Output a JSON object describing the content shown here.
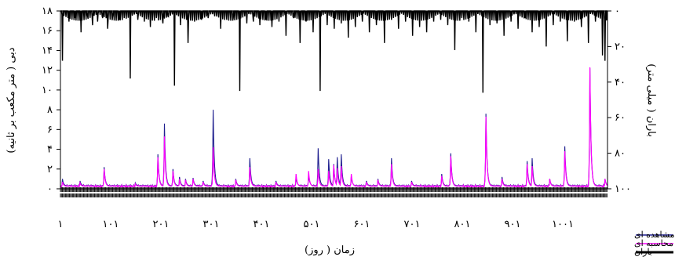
{
  "chart_data": {
    "type": "line",
    "xlabel": "زمان ( روز)",
    "ylabel_left": "دبی ( متر مکعب بر ثانیه)",
    "ylabel_right": "باران ( میلی متر)",
    "xlim": [
      1,
      1090
    ],
    "ylim_left": [
      0,
      18
    ],
    "ylim_right_reversed": [
      0,
      100
    ],
    "x_ticks": [
      1,
      101,
      201,
      301,
      401,
      501,
      601,
      701,
      801,
      901,
      1001
    ],
    "x_tick_labels": [
      "۱",
      "۱۰۱",
      "۲۰۱",
      "۳۰۱",
      "۴۰۱",
      "۵۰۱",
      "۶۰۱",
      "۷۰۱",
      "۸۰۱",
      "۹۰۱",
      "۱۰۰۱"
    ],
    "y_left_ticks": [
      0,
      2,
      4,
      6,
      8,
      10,
      12,
      14,
      16,
      18
    ],
    "y_left_tick_labels": [
      "۰",
      "۲",
      "۴",
      "۶",
      "۸",
      "۱۰",
      "۱۲",
      "۱۴",
      "۱۶",
      "۱۸"
    ],
    "y_right_ticks": [
      0,
      20,
      40,
      60,
      80,
      100
    ],
    "y_right_tick_labels": [
      "۰",
      "۲۰",
      "۴۰",
      "۶۰",
      "۸۰",
      "۱۰۰"
    ],
    "legend_position": "bottom-right",
    "series": [
      {
        "name": "دبی مشاهده ای",
        "color": "#1f1f8f",
        "axis": "left",
        "baseline": 0.3,
        "peaks": [
          [
            5,
            1.0
          ],
          [
            40,
            0.8
          ],
          [
            88,
            2.2
          ],
          [
            150,
            0.6
          ],
          [
            195,
            3.5
          ],
          [
            208,
            6.6
          ],
          [
            225,
            2.0
          ],
          [
            238,
            1.2
          ],
          [
            250,
            1.0
          ],
          [
            265,
            1.1
          ],
          [
            285,
            0.8
          ],
          [
            305,
            8.0
          ],
          [
            350,
            1.0
          ],
          [
            378,
            3.1
          ],
          [
            430,
            0.8
          ],
          [
            470,
            1.2
          ],
          [
            495,
            1.5
          ],
          [
            514,
            4.1
          ],
          [
            535,
            3.0
          ],
          [
            545,
            2.5
          ],
          [
            552,
            3.2
          ],
          [
            560,
            3.5
          ],
          [
            580,
            1.3
          ],
          [
            610,
            0.8
          ],
          [
            633,
            1.0
          ],
          [
            660,
            3.1
          ],
          [
            700,
            0.8
          ],
          [
            760,
            1.5
          ],
          [
            778,
            3.6
          ],
          [
            848,
            7.6
          ],
          [
            880,
            1.2
          ],
          [
            930,
            2.8
          ],
          [
            940,
            3.1
          ],
          [
            975,
            1.0
          ],
          [
            1005,
            4.3
          ],
          [
            1055,
            12.2
          ],
          [
            1085,
            1.0
          ]
        ]
      },
      {
        "name": "دبی محاسبه ای",
        "color": "#ff00ff",
        "axis": "left",
        "baseline": 0.25,
        "peaks": [
          [
            5,
            0.7
          ],
          [
            40,
            0.6
          ],
          [
            88,
            2.0
          ],
          [
            150,
            0.5
          ],
          [
            195,
            3.2
          ],
          [
            208,
            5.3
          ],
          [
            225,
            1.8
          ],
          [
            238,
            1.0
          ],
          [
            250,
            0.9
          ],
          [
            265,
            1.0
          ],
          [
            285,
            0.7
          ],
          [
            305,
            4.2
          ],
          [
            350,
            0.9
          ],
          [
            378,
            2.2
          ],
          [
            430,
            0.7
          ],
          [
            470,
            1.5
          ],
          [
            495,
            1.8
          ],
          [
            514,
            2.0
          ],
          [
            535,
            1.8
          ],
          [
            545,
            2.4
          ],
          [
            552,
            2.1
          ],
          [
            560,
            2.3
          ],
          [
            580,
            1.5
          ],
          [
            610,
            0.7
          ],
          [
            633,
            0.9
          ],
          [
            660,
            2.5
          ],
          [
            700,
            0.7
          ],
          [
            760,
            1.3
          ],
          [
            778,
            3.3
          ],
          [
            848,
            7.3
          ],
          [
            880,
            1.0
          ],
          [
            930,
            2.5
          ],
          [
            940,
            2.3
          ],
          [
            975,
            1.0
          ],
          [
            1005,
            3.8
          ],
          [
            1055,
            12.3
          ],
          [
            1085,
            1.0
          ]
        ]
      },
      {
        "name": "باران",
        "color": "#000000",
        "axis": "right",
        "events": [
          [
            5,
            28
          ],
          [
            18,
            6
          ],
          [
            30,
            4
          ],
          [
            42,
            12
          ],
          [
            55,
            3
          ],
          [
            65,
            8
          ],
          [
            75,
            6
          ],
          [
            85,
            4
          ],
          [
            95,
            10
          ],
          [
            105,
            3
          ],
          [
            118,
            5
          ],
          [
            128,
            4
          ],
          [
            140,
            38
          ],
          [
            155,
            5
          ],
          [
            168,
            6
          ],
          [
            180,
            9
          ],
          [
            192,
            4
          ],
          [
            205,
            7
          ],
          [
            215,
            3
          ],
          [
            228,
            42
          ],
          [
            240,
            8
          ],
          [
            255,
            18
          ],
          [
            268,
            6
          ],
          [
            282,
            5
          ],
          [
            295,
            4
          ],
          [
            308,
            3
          ],
          [
            320,
            10
          ],
          [
            332,
            5
          ],
          [
            345,
            4
          ],
          [
            358,
            45
          ],
          [
            372,
            7
          ],
          [
            385,
            6
          ],
          [
            398,
            8
          ],
          [
            410,
            5
          ],
          [
            422,
            9
          ],
          [
            436,
            6
          ],
          [
            450,
            14
          ],
          [
            465,
            4
          ],
          [
            478,
            18
          ],
          [
            490,
            6
          ],
          [
            504,
            12
          ],
          [
            518,
            45
          ],
          [
            532,
            8
          ],
          [
            546,
            10
          ],
          [
            560,
            7
          ],
          [
            574,
            15
          ],
          [
            588,
            9
          ],
          [
            602,
            6
          ],
          [
            616,
            12
          ],
          [
            630,
            8
          ],
          [
            646,
            18
          ],
          [
            660,
            5
          ],
          [
            674,
            10
          ],
          [
            688,
            6
          ],
          [
            702,
            14
          ],
          [
            716,
            9
          ],
          [
            730,
            12
          ],
          [
            744,
            6
          ],
          [
            758,
            5
          ],
          [
            772,
            8
          ],
          [
            786,
            22
          ],
          [
            800,
            4
          ],
          [
            814,
            6
          ],
          [
            828,
            12
          ],
          [
            842,
            46
          ],
          [
            856,
            8
          ],
          [
            870,
            7
          ],
          [
            884,
            14
          ],
          [
            898,
            6
          ],
          [
            912,
            10
          ],
          [
            926,
            4
          ],
          [
            940,
            12
          ],
          [
            954,
            9
          ],
          [
            968,
            20
          ],
          [
            982,
            8
          ],
          [
            996,
            6
          ],
          [
            1010,
            17
          ],
          [
            1024,
            6
          ],
          [
            1038,
            9
          ],
          [
            1052,
            18
          ],
          [
            1066,
            6
          ],
          [
            1080,
            25
          ],
          [
            1085,
            28
          ]
        ]
      }
    ]
  }
}
